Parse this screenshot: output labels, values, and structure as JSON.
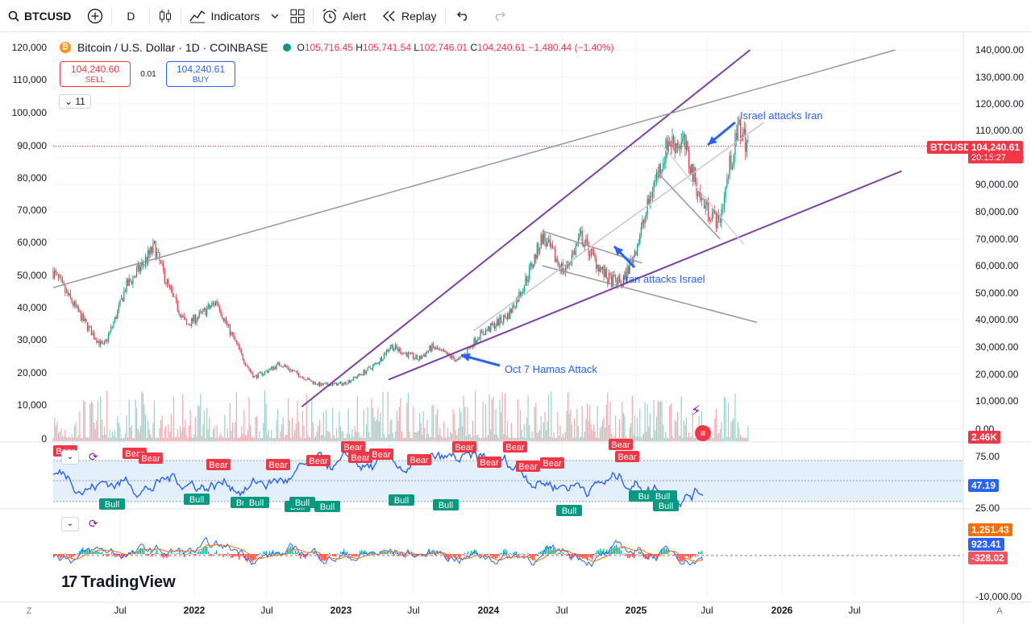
{
  "toolbar": {
    "symbol": "BTCUSD",
    "interval": "D",
    "indicators_label": "Indicators",
    "alert_label": "Alert",
    "replay_label": "Replay"
  },
  "legend": {
    "title": "Bitcoin / U.S. Dollar · 1D · COINBASE",
    "open": "105,716.45",
    "high": "105,741.54",
    "low": "102,746.01",
    "close": "104,240.61",
    "change": "−1,480.44 (−1.40%)",
    "o_label": "O",
    "h_label": "H",
    "l_label": "L",
    "c_label": "C"
  },
  "trade": {
    "sell_price": "104,240.60",
    "sell_label": "SELL",
    "spread": "0.01",
    "buy_price": "104,240.61",
    "buy_label": "BUY"
  },
  "indicator_collapse": "11",
  "price_tag": {
    "symbol": "BTCUSD",
    "price": "104,240.61",
    "countdown": "20:15:27"
  },
  "volume_tag": "2.46K",
  "rsi_tag": "47.19",
  "macd_tags": {
    "a": "1,251.43",
    "b": "923.41",
    "c": "-328.02"
  },
  "right_axis_ticks": [
    "140,000.00",
    "130,000.00",
    "120,000.00",
    "110,000.00",
    "100,000.00",
    "90,000.00",
    "80,000.00",
    "70,000.00",
    "60,000.00",
    "50,000.00",
    "40,000.00",
    "30,000.00",
    "20,000.00",
    "10,000.00",
    "0.00"
  ],
  "left_axis_ticks": [
    "120,000",
    "110,000",
    "100,000",
    "90,000",
    "80,000",
    "70,000",
    "60,000",
    "50,000",
    "40,000",
    "30,000",
    "20,000",
    "10,000",
    "0"
  ],
  "rsi_ticks": [
    "75.00",
    "25.00"
  ],
  "macd_tick": "-10,000.00",
  "time_axis": [
    "Jul",
    "2022",
    "Jul",
    "2023",
    "Jul",
    "2024",
    "Jul",
    "2025",
    "Jul",
    "2026",
    "Jul"
  ],
  "corner_labels": {
    "left": "Z",
    "right": "A"
  },
  "annotations": {
    "israel_attacks_iran": "Israel attacks Iran",
    "iran_attacks_israel": "Iran attacks Israel",
    "oct7": "Oct 7 Hamas Attack"
  },
  "signal_labels": {
    "bear": "Bear",
    "bull": "Bull",
    "bullbull": "BullBull"
  },
  "logo_text": "TradingView",
  "colors": {
    "up": "#089981",
    "down": "#f23645",
    "channel": "#7b3fa5",
    "annotation": "#2962ff",
    "rsi": "#2962ff"
  },
  "chart_data": {
    "type": "candlestick",
    "title": "Bitcoin / U.S. Dollar · 1D · COINBASE",
    "scale": "log",
    "y_range": [
      0,
      140000
    ],
    "x_range": [
      "2021-04",
      "2026-07"
    ],
    "series": [
      {
        "name": "BTCUSD",
        "dates": [
          "2021-04-01",
          "2021-05-15",
          "2021-07-20",
          "2021-09-07",
          "2021-11-10",
          "2022-01-20",
          "2022-03-28",
          "2022-05-10",
          "2022-06-18",
          "2022-08-15",
          "2022-11-09",
          "2022-12-31",
          "2023-03-15",
          "2023-04-14",
          "2023-06-15",
          "2023-07-15",
          "2023-09-11",
          "2023-10-24",
          "2023-12-31",
          "2024-03-14",
          "2024-05-01",
          "2024-06-07",
          "2024-08-05",
          "2024-09-06",
          "2024-10-01",
          "2024-11-12",
          "2024-12-17",
          "2025-01-20",
          "2025-02-28",
          "2025-04-07",
          "2025-05-01",
          "2025-05-22",
          "2025-06-13"
        ],
        "close": [
          58000,
          46000,
          30000,
          52000,
          67000,
          38000,
          47000,
          31000,
          19000,
          24000,
          16000,
          16500,
          24000,
          30500,
          25500,
          30000,
          25000,
          34000,
          42000,
          71000,
          58000,
          71000,
          55000,
          53500,
          64000,
          89000,
          106000,
          105000,
          84000,
          76000,
          97000,
          111000,
          104240.61
        ]
      }
    ],
    "trendlines": [
      {
        "name": "upper channel",
        "x": [
          "2022-10-01",
          "2025-06-15"
        ],
        "y": [
          8000,
          140000
        ]
      },
      {
        "name": "lower channel",
        "x": [
          "2023-04-10",
          "2026-05-15"
        ],
        "y": [
          18000,
          95000
        ]
      },
      {
        "name": "long-term resistance",
        "x": [
          "2021-04-01",
          "2026-05-01"
        ],
        "y": [
          52000,
          140000
        ]
      }
    ],
    "annotations": [
      {
        "text": "Israel attacks Iran",
        "x": "2025-06-13"
      },
      {
        "text": "Iran attacks Israel",
        "x": "2024-04-13"
      },
      {
        "text": "Oct 7 Hamas Attack",
        "x": "2023-10-07"
      }
    ],
    "rsi": {
      "last": 47.19,
      "upper": 75,
      "lower": 25
    },
    "macd": {
      "values": [
        1251.43,
        923.41,
        -328.02
      ]
    },
    "volume_last": "2.46K"
  }
}
